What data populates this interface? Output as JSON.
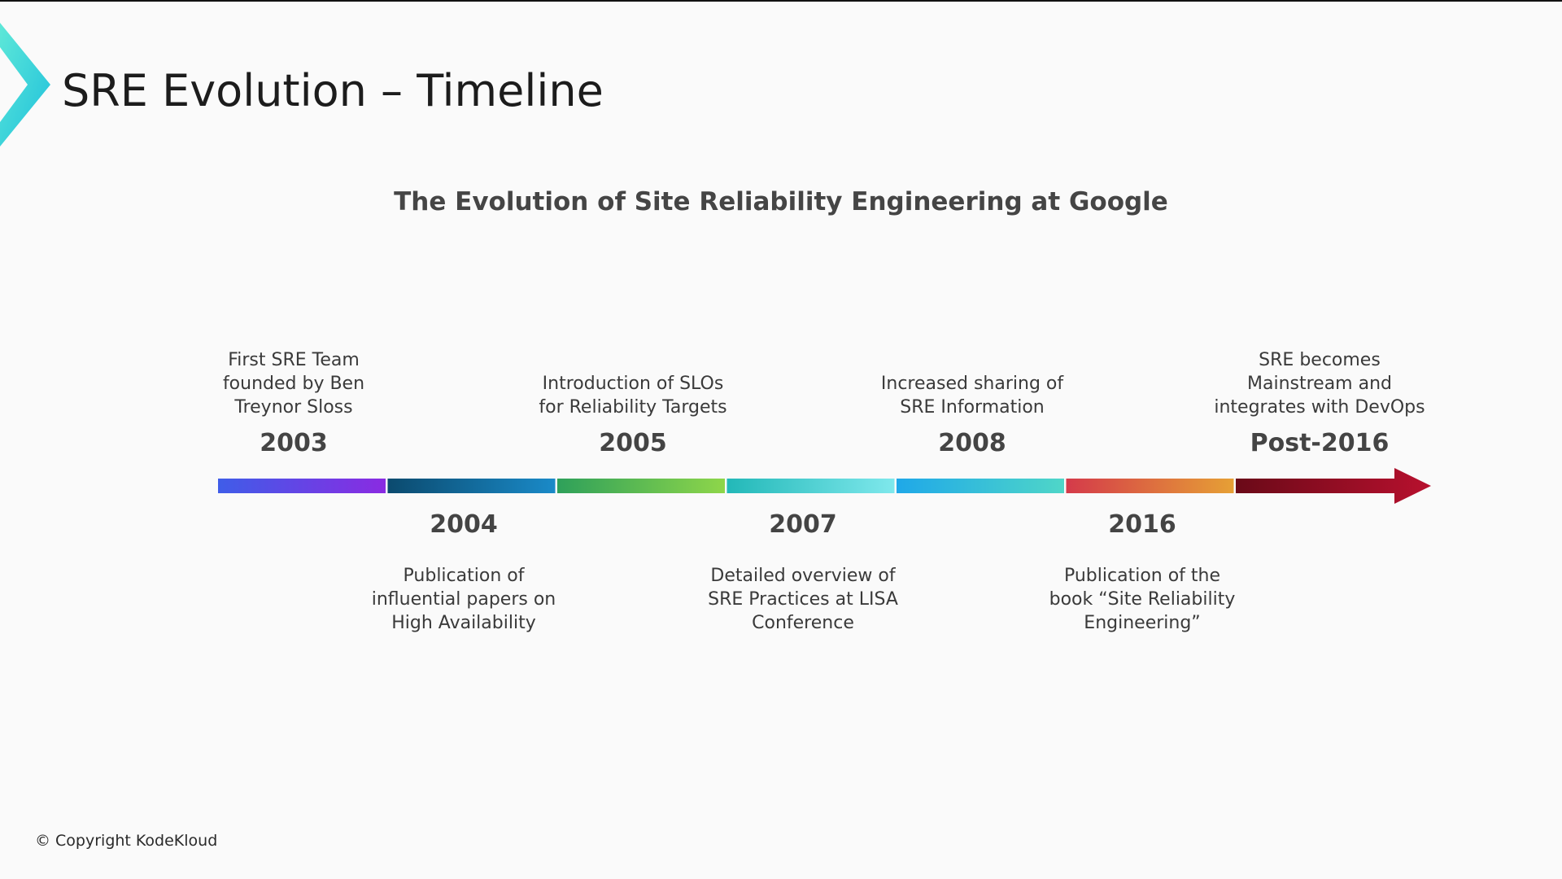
{
  "title": "SRE Evolution – Timeline",
  "subtitle": "The Evolution of Site Reliability Engineering at Google",
  "milestones": [
    {
      "year": "2003",
      "description": "First SRE Team founded by Ben Treynor Sloss",
      "position": "above",
      "colors": [
        "#3f5de8",
        "#8a2be2"
      ]
    },
    {
      "year": "2004",
      "description": "Publication of influential papers on High Availability",
      "position": "below",
      "colors": [
        "#0b4a6e",
        "#1a8ac8"
      ]
    },
    {
      "year": "2005",
      "description": "Introduction of SLOs for Reliability Targets",
      "position": "above",
      "colors": [
        "#2ea05a",
        "#8ed64a"
      ]
    },
    {
      "year": "2007",
      "description": "Detailed overview of SRE Practices at LISA Conference",
      "position": "below",
      "colors": [
        "#22b8b8",
        "#7fe8ec"
      ]
    },
    {
      "year": "2008",
      "description": "Increased sharing of SRE Information",
      "position": "above",
      "colors": [
        "#1fa8e8",
        "#4fd6c8"
      ]
    },
    {
      "year": "2016",
      "description": "Publication of the book “Site Reliability Engineering”",
      "position": "below",
      "colors": [
        "#d43a4a",
        "#e6a035"
      ]
    },
    {
      "year": "Post-2016",
      "description": "SRE becomes Mainstream and integrates with DevOps",
      "position": "above",
      "colors": [
        "#6a0a18",
        "#b8102e"
      ]
    }
  ],
  "footer": {
    "copyright": "© Copyright KodeKloud"
  },
  "colors": {
    "background": "#fafafa",
    "logo_gradient": [
      "#5ee8d8",
      "#1ec0dc"
    ]
  }
}
